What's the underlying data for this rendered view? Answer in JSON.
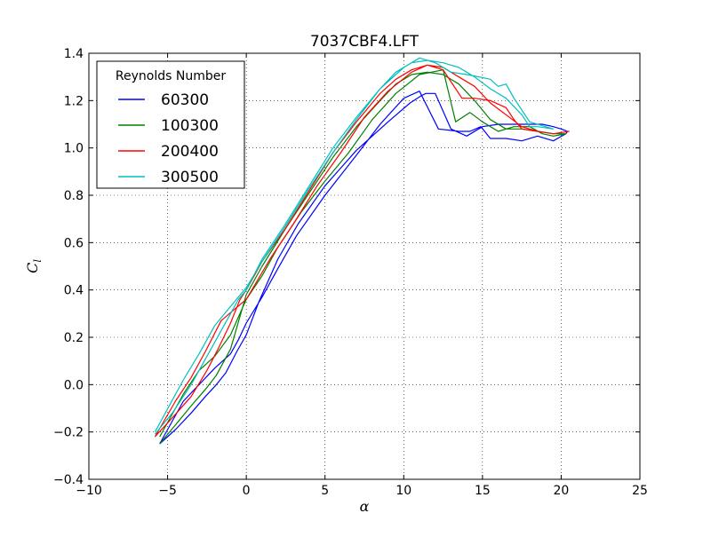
{
  "chart_data": {
    "type": "line",
    "title": "7037CBF4.LFT",
    "xlabel": "α",
    "ylabel": "C",
    "ylabel_subscript": "l",
    "xlim": [
      -10,
      25
    ],
    "ylim": [
      -0.4,
      1.4
    ],
    "xticks": [
      -10,
      -5,
      0,
      5,
      10,
      15,
      20,
      25
    ],
    "yticks": [
      -0.4,
      -0.2,
      0.0,
      0.2,
      0.4,
      0.6,
      0.8,
      1.0,
      1.2,
      1.4
    ],
    "xtick_labels": [
      "−10",
      "−5",
      "0",
      "5",
      "10",
      "15",
      "20",
      "25"
    ],
    "ytick_labels": [
      "−0.4",
      "−0.2",
      "0.0",
      "0.2",
      "0.4",
      "0.6",
      "0.8",
      "1.0",
      "1.2",
      "1.4"
    ],
    "grid": true,
    "legend": {
      "title": "Reynolds Number",
      "position": "top-left"
    },
    "series": [
      {
        "name": "60300",
        "color": "#0000ff",
        "x": [
          -5.5,
          -4.5,
          -3.5,
          -2.6,
          -1.9,
          -1.3,
          -0.6,
          0.0,
          0.8,
          2.0,
          3.3,
          5.0,
          7.0,
          9.0,
          10.4,
          11.1,
          11.4,
          12.0,
          13.0,
          14.0,
          15.0,
          16.0,
          17.0,
          18.0,
          18.8,
          19.5,
          20.0,
          20.4,
          20.3,
          19.5,
          18.5,
          17.5,
          16.5,
          15.5,
          14.9,
          14.2,
          13.5,
          12.2,
          11.0,
          10.0,
          8.5,
          7.0,
          5.0,
          3.2,
          2.0,
          1.0,
          0.0,
          -0.5,
          -1.0,
          -2.0,
          -3.0,
          -4.0,
          -5.5
        ],
        "y": [
          -0.25,
          -0.19,
          -0.12,
          -0.05,
          0.0,
          0.05,
          0.14,
          0.21,
          0.35,
          0.53,
          0.68,
          0.84,
          0.99,
          1.11,
          1.19,
          1.22,
          1.23,
          1.23,
          1.08,
          1.05,
          1.09,
          1.1,
          1.1,
          1.1,
          1.1,
          1.09,
          1.08,
          1.07,
          1.06,
          1.03,
          1.05,
          1.03,
          1.04,
          1.04,
          1.09,
          1.07,
          1.07,
          1.08,
          1.24,
          1.21,
          1.1,
          0.97,
          0.8,
          0.63,
          0.49,
          0.37,
          0.26,
          0.19,
          0.13,
          0.07,
          0.0,
          -0.07,
          -0.25
        ]
      },
      {
        "name": "100300",
        "color": "#008000",
        "x": [
          -5.5,
          -4.5,
          -3.5,
          -2.6,
          -1.9,
          -1.0,
          0.0,
          1.0,
          2.5,
          4.0,
          5.5,
          7.0,
          8.5,
          9.5,
          10.5,
          11.5,
          12.5,
          13.5,
          14.5,
          15.5,
          16.5,
          17.5,
          18.5,
          19.5,
          20.3,
          19.5,
          18.8,
          18.0,
          17.0,
          16.0,
          15.0,
          14.2,
          13.3,
          12.5,
          11.0,
          9.5,
          8.0,
          6.5,
          5.0,
          3.5,
          2.0,
          1.0,
          0.0,
          -1.0,
          -2.0,
          -3.0,
          -4.0,
          -5.5
        ],
        "y": [
          -0.25,
          -0.17,
          -0.09,
          -0.02,
          0.04,
          0.15,
          0.38,
          0.5,
          0.66,
          0.81,
          0.96,
          1.09,
          1.2,
          1.27,
          1.31,
          1.32,
          1.31,
          1.27,
          1.2,
          1.12,
          1.08,
          1.08,
          1.07,
          1.06,
          1.06,
          1.05,
          1.06,
          1.09,
          1.09,
          1.07,
          1.11,
          1.15,
          1.11,
          1.33,
          1.31,
          1.23,
          1.12,
          0.98,
          0.86,
          0.73,
          0.58,
          0.46,
          0.36,
          0.21,
          0.12,
          0.06,
          -0.04,
          -0.22
        ]
      },
      {
        "name": "200400",
        "color": "#ff0000",
        "x": [
          -5.8,
          -4.7,
          -3.5,
          -2.5,
          -1.8,
          -1.0,
          -0.4,
          0.0,
          1.0,
          2.5,
          4.0,
          5.5,
          7.0,
          8.5,
          9.5,
          10.5,
          11.5,
          12.5,
          13.5,
          14.5,
          15.5,
          16.5,
          17.5,
          18.5,
          19.5,
          20.5,
          19.5,
          18.5,
          17.5,
          17.0,
          16.5,
          15.5,
          14.5,
          13.7,
          12.5,
          11.5,
          10.5,
          9.0,
          7.5,
          6.0,
          4.5,
          3.0,
          1.5,
          0.0,
          -0.9,
          -1.6,
          -2.6,
          -3.5,
          -4.5,
          -5.8
        ],
        "y": [
          -0.22,
          -0.14,
          -0.05,
          0.06,
          0.15,
          0.26,
          0.36,
          0.4,
          0.52,
          0.66,
          0.82,
          0.98,
          1.11,
          1.23,
          1.29,
          1.33,
          1.35,
          1.34,
          1.3,
          1.26,
          1.19,
          1.14,
          1.09,
          1.07,
          1.06,
          1.07,
          1.06,
          1.07,
          1.08,
          1.12,
          1.17,
          1.2,
          1.21,
          1.21,
          1.33,
          1.35,
          1.32,
          1.24,
          1.13,
          0.98,
          0.84,
          0.68,
          0.53,
          0.36,
          0.31,
          0.27,
          0.14,
          0.03,
          -0.07,
          -0.22
        ]
      },
      {
        "name": "300500",
        "color": "#00bfbf",
        "x": [
          -5.8,
          -4.7,
          -3.5,
          -2.5,
          -1.5,
          -0.5,
          0.0,
          1.0,
          2.5,
          4.0,
          5.5,
          7.0,
          8.5,
          9.5,
          10.5,
          11.5,
          12.5,
          13.5,
          14.5,
          15.5,
          16.5,
          17.5,
          18.0,
          18.5,
          19.5,
          19.0,
          18.0,
          17.0,
          16.5,
          16.0,
          15.5,
          14.8,
          14.0,
          13.0,
          12.0,
          11.0,
          10.0,
          8.5,
          7.0,
          5.5,
          4.0,
          2.5,
          1.0,
          0.0,
          -1.0,
          -2.0,
          -3.0,
          -4.0,
          -5.8
        ],
        "y": [
          -0.21,
          -0.12,
          0.0,
          0.12,
          0.24,
          0.36,
          0.4,
          0.53,
          0.68,
          0.84,
          1.0,
          1.13,
          1.25,
          1.32,
          1.36,
          1.37,
          1.36,
          1.34,
          1.3,
          1.25,
          1.21,
          1.14,
          1.09,
          1.09,
          1.08,
          1.09,
          1.11,
          1.21,
          1.27,
          1.26,
          1.29,
          1.3,
          1.31,
          1.32,
          1.36,
          1.38,
          1.34,
          1.25,
          1.12,
          0.98,
          0.83,
          0.67,
          0.52,
          0.41,
          0.33,
          0.25,
          0.13,
          0.02,
          -0.2
        ]
      }
    ]
  }
}
